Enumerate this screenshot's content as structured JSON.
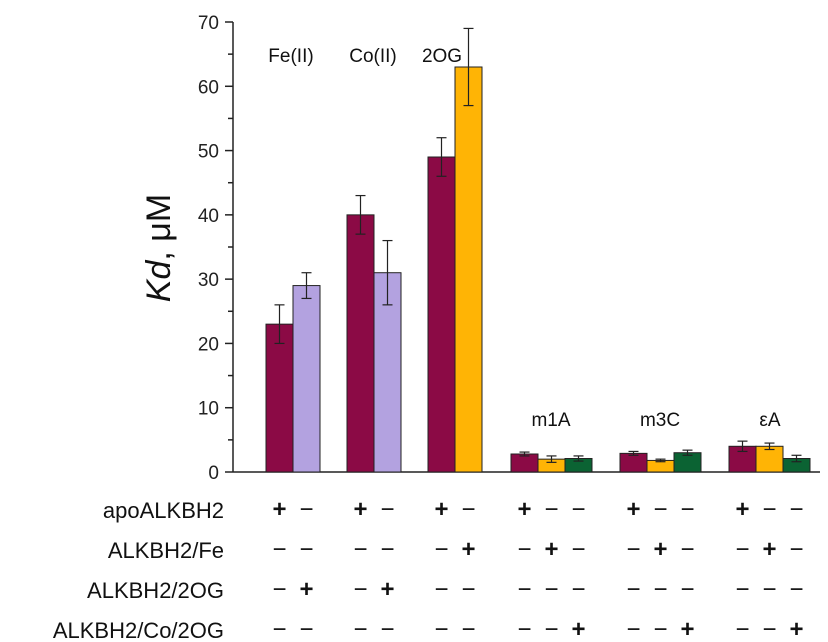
{
  "chart_data": {
    "type": "bar",
    "ylabel_italic": "Kd",
    "ylabel_rest": ", μM",
    "ylim": [
      0,
      70
    ],
    "yticks": [
      "0",
      "10",
      "20",
      "30",
      "40",
      "50",
      "60",
      "70"
    ],
    "grid": false,
    "group_labels": [
      "Fe(II)",
      "Co(II)",
      "2OG",
      "m1A",
      "m3C",
      "εA"
    ],
    "colors": {
      "apoALKBH2": "#8b0a45",
      "ALKBH2/2OG": "#b3a2e0",
      "ALKBH2/Fe": "#ffb405",
      "ALKBH2/Co/2OG": "#0b6333"
    },
    "groups": [
      {
        "label": "Fe(II)",
        "bars": [
          {
            "protein": "apoALKBH2",
            "value": 23,
            "error": 3
          },
          {
            "protein": "ALKBH2/2OG",
            "value": 29,
            "error": 2
          }
        ]
      },
      {
        "label": "Co(II)",
        "bars": [
          {
            "protein": "apoALKBH2",
            "value": 40,
            "error": 3
          },
          {
            "protein": "ALKBH2/2OG",
            "value": 31,
            "error": 5
          }
        ]
      },
      {
        "label": "2OG",
        "bars": [
          {
            "protein": "apoALKBH2",
            "value": 49,
            "error": 3
          },
          {
            "protein": "ALKBH2/Fe",
            "value": 63,
            "error": 6
          }
        ]
      },
      {
        "label": "m1A",
        "bars": [
          {
            "protein": "apoALKBH2",
            "value": 2.8,
            "error": 0.3
          },
          {
            "protein": "ALKBH2/Fe",
            "value": 2.0,
            "error": 0.5
          },
          {
            "protein": "ALKBH2/Co/2OG",
            "value": 2.1,
            "error": 0.4
          }
        ]
      },
      {
        "label": "m3C",
        "bars": [
          {
            "protein": "apoALKBH2",
            "value": 2.9,
            "error": 0.3
          },
          {
            "protein": "ALKBH2/Fe",
            "value": 1.8,
            "error": 0.2
          },
          {
            "protein": "ALKBH2/Co/2OG",
            "value": 3.0,
            "error": 0.4
          }
        ]
      },
      {
        "label": "εA",
        "bars": [
          {
            "protein": "apoALKBH2",
            "value": 4.0,
            "error": 0.8
          },
          {
            "protein": "ALKBH2/Fe",
            "value": 4.0,
            "error": 0.5
          },
          {
            "protein": "ALKBH2/Co/2OG",
            "value": 2.1,
            "error": 0.5
          }
        ]
      }
    ],
    "table": {
      "rows": [
        "apoALKBH2",
        "ALKBH2/Fe",
        "ALKBH2/2OG",
        "ALKBH2/Co/2OG"
      ],
      "cells": [
        [
          [
            "+",
            "−"
          ],
          [
            "+",
            "−"
          ],
          [
            "+",
            "−"
          ],
          [
            "+",
            "−",
            "−"
          ],
          [
            "+",
            "−",
            "−"
          ],
          [
            "+",
            "−",
            "−"
          ]
        ],
        [
          [
            "−",
            "−"
          ],
          [
            "−",
            "−"
          ],
          [
            "−",
            "+"
          ],
          [
            "−",
            "+",
            "−"
          ],
          [
            "−",
            "+",
            "−"
          ],
          [
            "−",
            "+",
            "−"
          ]
        ],
        [
          [
            "−",
            "+"
          ],
          [
            "−",
            "+"
          ],
          [
            "−",
            "−"
          ],
          [
            "−",
            "−",
            "−"
          ],
          [
            "−",
            "−",
            "−"
          ],
          [
            "−",
            "−",
            "−"
          ]
        ],
        [
          [
            "−",
            "−"
          ],
          [
            "−",
            "−"
          ],
          [
            "−",
            "−"
          ],
          [
            "−",
            "−",
            "+"
          ],
          [
            "−",
            "−",
            "+"
          ],
          [
            "−",
            "−",
            "+"
          ]
        ]
      ]
    }
  }
}
